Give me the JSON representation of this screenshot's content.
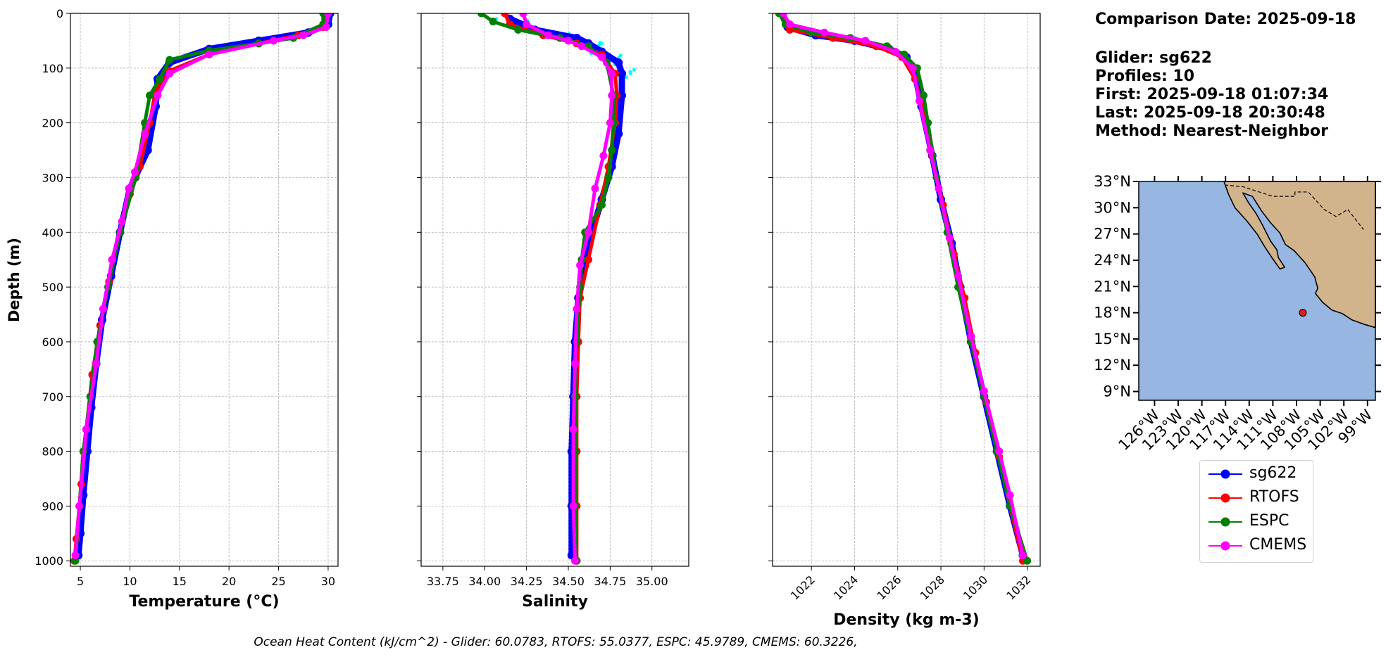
{
  "info": {
    "comparison_date": "Comparison Date: 2025-09-18",
    "glider": "Glider: sg622",
    "profiles": "Profiles: 10",
    "first": "First: 2025-09-18 01:07:34",
    "last": "Last: 2025-09-18 20:30:48",
    "method": "Method: Nearest-Neighbor"
  },
  "footer": "Ocean Heat Content (kJ/cm^2) - Glider: 60.0783,  RTOFS: 55.0377,  ESPC: 45.9789,  CMEMS: 60.3226,",
  "colors": {
    "sg622": "#0000ff",
    "glider_raw": "#00ffff",
    "RTOFS": "#ff0000",
    "ESPC": "#008000",
    "CMEMS": "#ff00ff",
    "ocean": "#97b6e1",
    "land": "#d2b48c"
  },
  "legend": [
    {
      "name": "sg622",
      "color": "#0000ff"
    },
    {
      "name": "RTOFS",
      "color": "#ff0000"
    },
    {
      "name": "ESPC",
      "color": "#008000"
    },
    {
      "name": "CMEMS",
      "color": "#ff00ff"
    }
  ],
  "chart_data": [
    {
      "type": "line",
      "xlabel": "Temperature (°C)",
      "ylabel": "Depth (m)",
      "xlim": [
        4,
        31
      ],
      "ylim": [
        1010,
        0
      ],
      "xticks": [
        5,
        10,
        15,
        20,
        25,
        30
      ],
      "yticks": [
        0,
        100,
        200,
        300,
        400,
        500,
        600,
        700,
        800,
        900,
        1000
      ],
      "grid": true,
      "series": [
        {
          "name": "sg622",
          "points": [
            [
              30.2,
              0
            ],
            [
              30.0,
              20
            ],
            [
              28,
              35
            ],
            [
              23,
              50
            ],
            [
              18,
              65
            ],
            [
              14,
              90
            ],
            [
              12.8,
              120
            ],
            [
              12.6,
              170
            ],
            [
              11.8,
              250
            ],
            [
              10,
              320
            ],
            [
              9,
              400
            ],
            [
              8.1,
              480
            ],
            [
              7.2,
              560
            ],
            [
              6.6,
              640
            ],
            [
              6.1,
              720
            ],
            [
              5.7,
              800
            ],
            [
              5.3,
              880
            ],
            [
              5.0,
              950
            ],
            [
              4.8,
              990
            ]
          ]
        },
        {
          "name": "RTOFS",
          "points": [
            [
              30,
              0
            ],
            [
              29.5,
              25
            ],
            [
              27,
              40
            ],
            [
              23,
              55
            ],
            [
              18,
              75
            ],
            [
              14,
              105
            ],
            [
              12.6,
              140
            ],
            [
              12,
              200
            ],
            [
              11,
              280
            ],
            [
              10,
              330
            ],
            [
              9,
              400
            ],
            [
              7.9,
              490
            ],
            [
              7,
              570
            ],
            [
              6.2,
              660
            ],
            [
              5.6,
              760
            ],
            [
              5.1,
              860
            ],
            [
              4.6,
              960
            ],
            [
              4.4,
              1000
            ]
          ]
        },
        {
          "name": "ESPC",
          "points": [
            [
              29.5,
              0
            ],
            [
              29.5,
              20
            ],
            [
              26.5,
              45
            ],
            [
              23,
              55
            ],
            [
              18,
              68
            ],
            [
              14,
              85
            ],
            [
              13,
              120
            ],
            [
              12,
              150
            ],
            [
              11.5,
              200
            ],
            [
              10.6,
              300
            ],
            [
              9.0,
              400
            ],
            [
              7.8,
              500
            ],
            [
              6.7,
              600
            ],
            [
              6.0,
              700
            ],
            [
              5.3,
              800
            ],
            [
              4.9,
              900
            ],
            [
              4.5,
              1000
            ]
          ]
        },
        {
          "name": "CMEMS",
          "points": [
            [
              30,
              0
            ],
            [
              29.8,
              25
            ],
            [
              27.5,
              40
            ],
            [
              24.5,
              50
            ],
            [
              18,
              75
            ],
            [
              14,
              110
            ],
            [
              12.8,
              150
            ],
            [
              11.5,
              220
            ],
            [
              10.5,
              290
            ],
            [
              9.9,
              320
            ],
            [
              9.2,
              380
            ],
            [
              8.2,
              450
            ],
            [
              7.3,
              540
            ],
            [
              6.6,
              640
            ],
            [
              5.6,
              760
            ],
            [
              4.9,
              900
            ],
            [
              4.5,
              990
            ]
          ]
        }
      ]
    },
    {
      "type": "line",
      "xlabel": "Salinity",
      "xlim": [
        33.62,
        35.22
      ],
      "ylim": [
        1010,
        0
      ],
      "xticks": [
        33.75,
        34.0,
        34.25,
        34.5,
        34.75,
        35.0
      ],
      "yticks": [
        0,
        100,
        200,
        300,
        400,
        500,
        600,
        700,
        800,
        900,
        1000
      ],
      "grid": true,
      "series": [
        {
          "name": "sg622",
          "points": [
            [
              34.15,
              10
            ],
            [
              34.3,
              30
            ],
            [
              34.55,
              45
            ],
            [
              34.62,
              55
            ],
            [
              34.7,
              70
            ],
            [
              34.8,
              90
            ],
            [
              34.82,
              110
            ],
            [
              34.82,
              150
            ],
            [
              34.8,
              220
            ],
            [
              34.76,
              280
            ],
            [
              34.7,
              340
            ],
            [
              34.64,
              400
            ],
            [
              34.6,
              460
            ],
            [
              34.56,
              520
            ],
            [
              34.54,
              600
            ],
            [
              34.53,
              700
            ],
            [
              34.52,
              800
            ],
            [
              34.52,
              900
            ],
            [
              34.52,
              990
            ]
          ]
        },
        {
          "name": "RTOFS",
          "points": [
            [
              34.12,
              0
            ],
            [
              34.15,
              20
            ],
            [
              34.35,
              40
            ],
            [
              34.55,
              55
            ],
            [
              34.7,
              75
            ],
            [
              34.78,
              110
            ],
            [
              34.79,
              150
            ],
            [
              34.78,
              200
            ],
            [
              34.74,
              280
            ],
            [
              34.69,
              350
            ],
            [
              34.62,
              450
            ],
            [
              34.57,
              520
            ],
            [
              34.56,
              600
            ],
            [
              34.55,
              700
            ],
            [
              34.55,
              800
            ],
            [
              34.55,
              900
            ],
            [
              34.55,
              1000
            ]
          ]
        },
        {
          "name": "ESPC",
          "points": [
            [
              33.98,
              0
            ],
            [
              34.05,
              15
            ],
            [
              34.2,
              30
            ],
            [
              34.45,
              45
            ],
            [
              34.62,
              60
            ],
            [
              34.73,
              90
            ],
            [
              34.77,
              150
            ],
            [
              34.77,
              200
            ],
            [
              34.76,
              250
            ],
            [
              34.74,
              300
            ],
            [
              34.7,
              350
            ],
            [
              34.6,
              400
            ],
            [
              34.58,
              450
            ],
            [
              34.57,
              500
            ],
            [
              34.55,
              600
            ],
            [
              34.54,
              700
            ],
            [
              34.54,
              800
            ],
            [
              34.54,
              900
            ],
            [
              34.55,
              1000
            ]
          ]
        },
        {
          "name": "CMEMS",
          "points": [
            [
              34.23,
              0
            ],
            [
              34.25,
              20
            ],
            [
              34.38,
              40
            ],
            [
              34.5,
              50
            ],
            [
              34.58,
              60
            ],
            [
              34.7,
              80
            ],
            [
              34.76,
              110
            ],
            [
              34.76,
              150
            ],
            [
              34.75,
              200
            ],
            [
              34.71,
              260
            ],
            [
              34.66,
              320
            ],
            [
              34.62,
              400
            ],
            [
              34.57,
              460
            ],
            [
              34.55,
              540
            ],
            [
              34.54,
              640
            ],
            [
              34.53,
              760
            ],
            [
              34.53,
              900
            ],
            [
              34.54,
              1000
            ]
          ]
        }
      ]
    },
    {
      "type": "line",
      "xlabel": "Density (kg m-3)",
      "xlim": [
        1020.2,
        1032.6
      ],
      "ylim": [
        1010,
        0
      ],
      "xticks": [
        1022,
        1024,
        1026,
        1028,
        1030,
        1032
      ],
      "yticks": [
        0,
        100,
        200,
        300,
        400,
        500,
        600,
        700,
        800,
        900,
        1000
      ],
      "grid": true,
      "series": [
        {
          "name": "sg622",
          "points": [
            [
              1020.6,
              0
            ],
            [
              1020.9,
              25
            ],
            [
              1022.2,
              40
            ],
            [
              1024.0,
              50
            ],
            [
              1025.6,
              65
            ],
            [
              1026.4,
              80
            ],
            [
              1026.8,
              110
            ],
            [
              1027.1,
              170
            ],
            [
              1027.6,
              260
            ],
            [
              1028.0,
              340
            ],
            [
              1028.5,
              420
            ],
            [
              1028.9,
              500
            ],
            [
              1029.4,
              600
            ],
            [
              1030.0,
              700
            ],
            [
              1030.6,
              800
            ],
            [
              1031.2,
              900
            ],
            [
              1031.8,
              990
            ]
          ]
        },
        {
          "name": "RTOFS",
          "points": [
            [
              1020.6,
              0
            ],
            [
              1021.0,
              30
            ],
            [
              1023.0,
              45
            ],
            [
              1025.0,
              60
            ],
            [
              1026.2,
              80
            ],
            [
              1026.8,
              120
            ],
            [
              1027.2,
              180
            ],
            [
              1027.6,
              260
            ],
            [
              1028.1,
              350
            ],
            [
              1028.6,
              440
            ],
            [
              1029.1,
              520
            ],
            [
              1029.6,
              620
            ],
            [
              1030.1,
              710
            ],
            [
              1030.7,
              810
            ],
            [
              1031.2,
              900
            ],
            [
              1031.8,
              1000
            ]
          ]
        },
        {
          "name": "ESPC",
          "points": [
            [
              1020.5,
              0
            ],
            [
              1020.8,
              20
            ],
            [
              1022.0,
              35
            ],
            [
              1023.8,
              45
            ],
            [
              1025.5,
              60
            ],
            [
              1026.3,
              75
            ],
            [
              1026.9,
              100
            ],
            [
              1027.2,
              150
            ],
            [
              1027.4,
              200
            ],
            [
              1027.8,
              300
            ],
            [
              1028.3,
              400
            ],
            [
              1028.8,
              500
            ],
            [
              1029.4,
              600
            ],
            [
              1030.0,
              700
            ],
            [
              1030.6,
              800
            ],
            [
              1031.2,
              900
            ],
            [
              1032.0,
              1000
            ]
          ]
        },
        {
          "name": "CMEMS",
          "points": [
            [
              1020.7,
              0
            ],
            [
              1021.0,
              20
            ],
            [
              1022.6,
              35
            ],
            [
              1024.5,
              50
            ],
            [
              1025.9,
              70
            ],
            [
              1026.7,
              100
            ],
            [
              1027.0,
              160
            ],
            [
              1027.5,
              250
            ],
            [
              1027.9,
              320
            ],
            [
              1028.4,
              410
            ],
            [
              1028.8,
              480
            ],
            [
              1029.4,
              590
            ],
            [
              1030.0,
              690
            ],
            [
              1030.7,
              800
            ],
            [
              1031.2,
              880
            ],
            [
              1031.8,
              990
            ]
          ]
        }
      ]
    }
  ],
  "map": {
    "lon_range": [
      -128,
      -98
    ],
    "lat_range": [
      8,
      33
    ],
    "lon_ticks": [
      "126°W",
      "123°W",
      "120°W",
      "117°W",
      "114°W",
      "111°W",
      "108°W",
      "105°W",
      "102°W",
      "99°W"
    ],
    "lat_ticks": [
      "33°N",
      "30°N",
      "27°N",
      "24°N",
      "21°N",
      "18°N",
      "15°N",
      "12°N",
      "9°N"
    ],
    "glider_position": {
      "lon": -107.2,
      "lat": 18.0
    }
  }
}
